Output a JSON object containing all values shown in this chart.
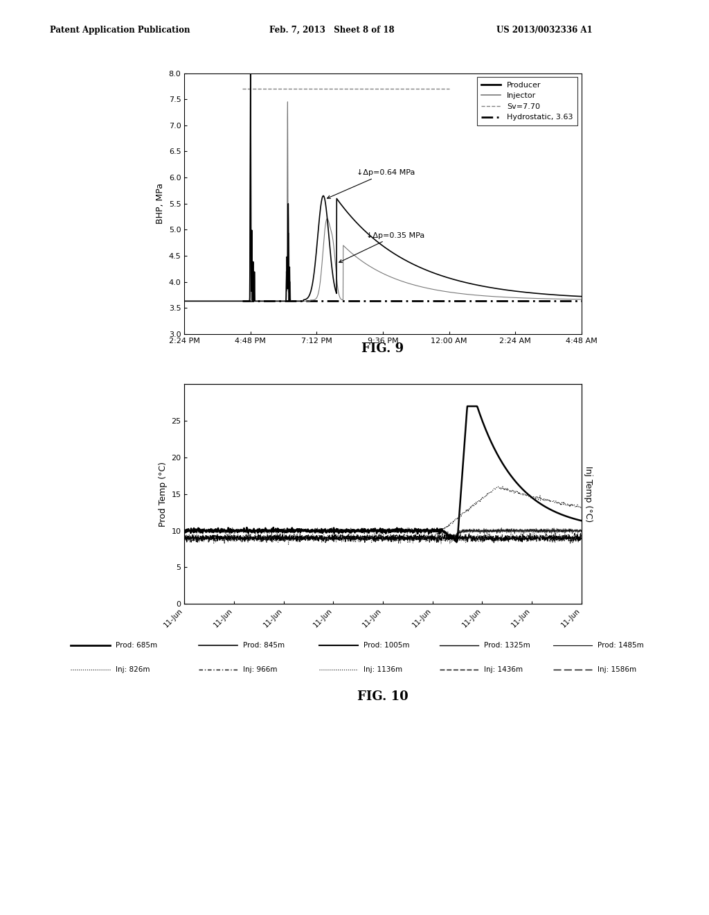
{
  "header_left": "Patent Application Publication",
  "header_mid": "Feb. 7, 2013   Sheet 8 of 18",
  "header_right": "US 2013/0032336 A1",
  "fig9": {
    "title": "FIG. 9",
    "ylabel": "BHP, MPa",
    "ylim": [
      3.0,
      8.0
    ],
    "yticks": [
      3.0,
      3.5,
      4.0,
      4.5,
      5.0,
      5.5,
      6.0,
      6.5,
      7.0,
      7.5,
      8.0
    ],
    "xtick_labels": [
      "2:24 PM",
      "4:48 PM",
      "7:12 PM",
      "9:36 PM",
      "12:00 AM",
      "2:24 AM",
      "4:48 AM"
    ],
    "sv_value": 7.7,
    "hydrostatic_value": 3.63,
    "annotation1": "↓Δp=0.64 MPa",
    "annotation2": "↓Δp=0.35 MPa",
    "legend_entries": [
      "Producer",
      "Injector",
      "Sv=7.70",
      "Hydrostatic, 3.63"
    ]
  },
  "fig10": {
    "title": "FIG. 10",
    "ylabel_left": "Prod Temp (°C)",
    "ylabel_right": "Inj Temp (°C)",
    "ylim_left": [
      0,
      30
    ],
    "yticks_left": [
      0,
      5,
      10,
      15,
      20,
      25
    ],
    "xtick_labels": [
      "11-Jun",
      "11-Jun",
      "11-Jun",
      "11-Jun",
      "11-Jun",
      "11-Jun",
      "11-Jun",
      "11-Jun",
      "11-Jun"
    ],
    "legend_prod": [
      "Prod: 685m",
      "Prod: 845m",
      "Prod: 1005m",
      "Prod: 1325m",
      "Prod: 1485m"
    ],
    "legend_inj": [
      "Inj: 826m",
      "Inj: 966m",
      "Inj: 1136m",
      "Inj: 1436m",
      "Inj: 1586m"
    ]
  },
  "bg_color": "#ffffff"
}
